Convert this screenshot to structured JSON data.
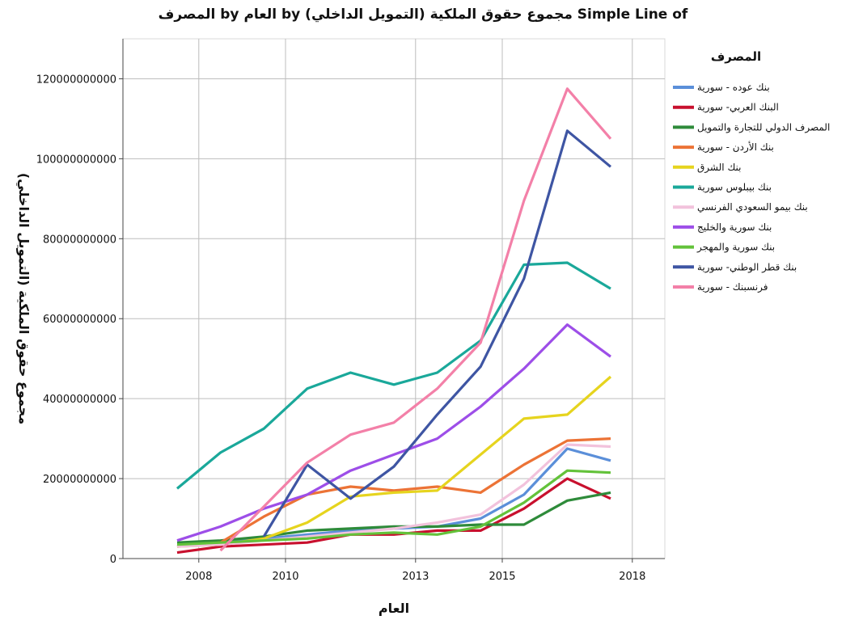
{
  "chart_data": {
    "type": "line",
    "title": "المصرف by العام by (مجموع حقوق الملكية  (التمويل الداخلي Simple Line of",
    "xlabel": "العام",
    "ylabel": "مجموع حقوق الملكية  (التمويل الداخلي)",
    "xlim": [
      2006.25,
      2018.75
    ],
    "ylim": [
      0,
      130000000000
    ],
    "xticks": [
      2008,
      2010,
      2013,
      2015,
      2018
    ],
    "xtick_labels": [
      "2008",
      "2010",
      "2013",
      "2015",
      "2018"
    ],
    "yticks": [
      0,
      20000000000,
      40000000000,
      60000000000,
      80000000000,
      100000000000,
      120000000000
    ],
    "ytick_labels": [
      "0",
      "20000000000",
      "40000000000",
      "60000000000",
      "80000000000",
      "100000000000",
      "120000000000"
    ],
    "grid": true,
    "legend_title": "المصرف",
    "legend_position": "right",
    "x": [
      2007.5,
      2008.5,
      2009.5,
      2010.5,
      2011.5,
      2012.5,
      2013.5,
      2014.5,
      2015.5,
      2016.5,
      2017.5
    ],
    "series": [
      {
        "name": "بنك عوده - سورية",
        "color": "#5b8fd9",
        "values": [
          3000000000,
          4000000000,
          5000000000,
          6000000000,
          7000000000,
          7500000000,
          8000000000,
          10000000000,
          16000000000,
          27500000000,
          24500000000
        ]
      },
      {
        "name": "البنك العربي- سورية",
        "color": "#c8102e",
        "values": [
          1500000000,
          3000000000,
          3500000000,
          4000000000,
          6000000000,
          6000000000,
          7000000000,
          7000000000,
          12500000000,
          20000000000,
          15000000000
        ]
      },
      {
        "name": "المصرف الدولي للتجارة والتمويل",
        "color": "#2e8b3a",
        "values": [
          4000000000,
          4500000000,
          5500000000,
          7000000000,
          7500000000,
          8000000000,
          8000000000,
          8500000000,
          8500000000,
          14500000000,
          16500000000
        ]
      },
      {
        "name": "بنك الأردن - سورية",
        "color": "#ec7336",
        "values": [
          3000000000,
          4000000000,
          10500000000,
          16000000000,
          18000000000,
          17000000000,
          18000000000,
          16500000000,
          23500000000,
          29500000000,
          30000000000
        ]
      },
      {
        "name": "بنك الشرق",
        "color": "#e6d41e",
        "values": [
          3000000000,
          3500000000,
          5000000000,
          9000000000,
          15500000000,
          16500000000,
          17000000000,
          26000000000,
          35000000000,
          36000000000,
          45500000000
        ]
      },
      {
        "name": "بنك بيبلوس سورية",
        "color": "#1aa89a",
        "values": [
          17500000000,
          26500000000,
          32500000000,
          42500000000,
          46500000000,
          43500000000,
          46500000000,
          54500000000,
          73500000000,
          74000000000,
          67500000000
        ]
      },
      {
        "name": "بنك بيمو السعودي الفرنسي",
        "color": "#f2c2dc",
        "values": [
          3000000000,
          3500000000,
          4500000000,
          5500000000,
          6500000000,
          7500000000,
          9000000000,
          11000000000,
          18500000000,
          28500000000,
          28000000000
        ]
      },
      {
        "name": "بنك سورية والخليج",
        "color": "#9d4ee8",
        "values": [
          4500000000,
          8000000000,
          12500000000,
          16000000000,
          22000000000,
          26000000000,
          30000000000,
          38000000000,
          47500000000,
          58500000000,
          50500000000
        ]
      },
      {
        "name": "بنك سورية والمهجر",
        "color": "#63c23a",
        "values": [
          3500000000,
          4000000000,
          4500000000,
          5000000000,
          6000000000,
          6500000000,
          6000000000,
          8000000000,
          14000000000,
          22000000000,
          21500000000
        ]
      },
      {
        "name": "بنك قطر الوطني- سورية",
        "color": "#3e55a3",
        "values": [
          null,
          null,
          5500000000,
          23500000000,
          15000000000,
          23000000000,
          36000000000,
          48000000000,
          70000000000,
          107000000000,
          98000000000
        ]
      },
      {
        "name": "فرنسبنك - سورية",
        "color": "#f380a8",
        "values": [
          null,
          2000000000,
          13000000000,
          24000000000,
          31000000000,
          34000000000,
          42500000000,
          54000000000,
          89500000000,
          117500000000,
          105000000000
        ]
      }
    ]
  }
}
